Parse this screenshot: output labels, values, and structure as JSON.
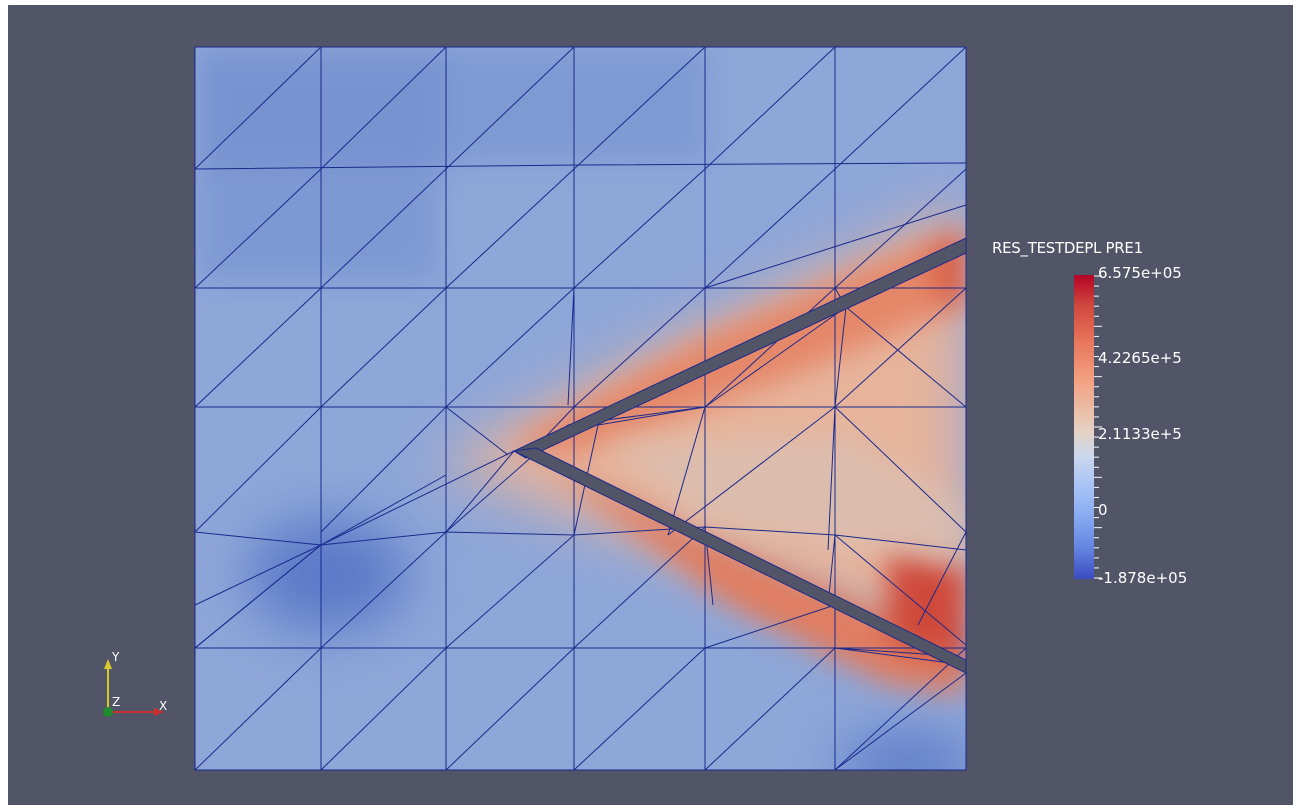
{
  "legend": {
    "title": "RES_TESTDEPL PRE1",
    "labels": [
      "6.575e+05",
      "4.2265e+5",
      "2.1133e+5",
      "0",
      "-1.878e+05"
    ]
  },
  "axes": {
    "y": "Y",
    "z": "Z",
    "x": "X"
  },
  "colors": {
    "background": "#525468",
    "mesh": "#1a2a8c",
    "low": "#3b4cc0",
    "high": "#b40426"
  }
}
